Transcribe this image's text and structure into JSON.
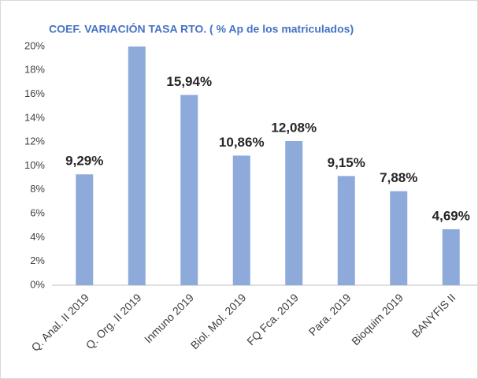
{
  "chart_data": {
    "type": "bar",
    "title": "COEF. VARIACIÓN TASA RTO. ( % Ap de los matriculados)",
    "categories": [
      "Q. Anal. II 2019",
      "Q. Org. II 2019",
      "Inmuno 2019",
      "Biol. Mol. 2019",
      "FQ Fca. 2019",
      "Para. 2019",
      "Bioquim 2019",
      "BANYFIS II"
    ],
    "values": [
      9.29,
      20,
      15.94,
      10.86,
      12.08,
      9.15,
      7.88,
      4.69
    ],
    "value_labels": [
      "9,29%",
      null,
      "15,94%",
      "10,86%",
      "12,08%",
      "9,15%",
      "7,88%",
      "4,69%"
    ],
    "color": "#8eaadb",
    "ylim": [
      0,
      20
    ],
    "yticks": [
      {
        "value": 0,
        "label": "0%"
      },
      {
        "value": 2,
        "label": "2%"
      },
      {
        "value": 4,
        "label": "4%"
      },
      {
        "value": 6,
        "label": "6%"
      },
      {
        "value": 8,
        "label": "8%"
      },
      {
        "value": 10,
        "label": "10%"
      },
      {
        "value": 12,
        "label": "12%"
      },
      {
        "value": 14,
        "label": "14%"
      },
      {
        "value": 16,
        "label": "16%"
      },
      {
        "value": 18,
        "label": "18%"
      },
      {
        "value": 20,
        "label": "20%"
      }
    ],
    "grid": false
  }
}
